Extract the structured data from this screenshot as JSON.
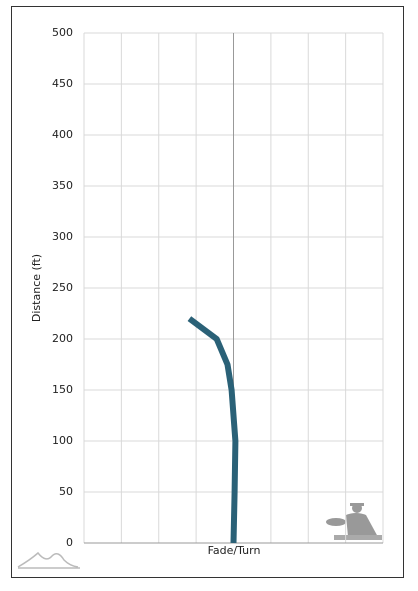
{
  "chart_data": {
    "type": "line",
    "y_label": "Distance (ft)",
    "x_label": "Fade/Turn",
    "x": [
      0,
      0.03,
      0.05,
      -0.05,
      -0.16,
      -0.45,
      -1.18
    ],
    "series": [
      {
        "color": "#2a6177",
        "values": [
          0,
          50,
          100,
          150,
          175,
          200,
          220
        ]
      }
    ],
    "xlim": [
      -4,
      4
    ],
    "xticks": [
      -4,
      -3,
      -2,
      -1,
      0,
      1,
      2,
      3,
      4
    ],
    "xtick_labels": false,
    "ylim": [
      0,
      500
    ],
    "yticks": [
      0,
      50,
      100,
      150,
      200,
      250,
      300,
      350,
      400,
      450,
      500
    ],
    "grid": true
  }
}
